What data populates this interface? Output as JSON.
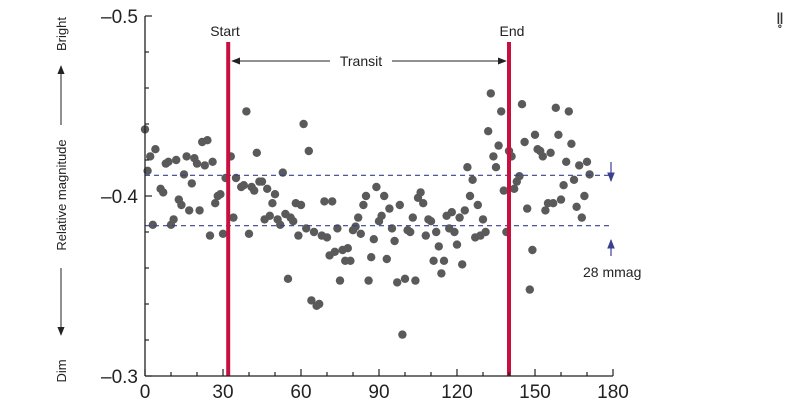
{
  "chart_data": {
    "type": "scatter",
    "xlim": [
      0,
      180
    ],
    "ylim": [
      -0.5,
      -0.3
    ],
    "y_axis_inverted": true,
    "x_ticks": [
      0,
      30,
      60,
      90,
      120,
      150,
      180
    ],
    "y_ticks": [
      -0.5,
      -0.4,
      -0.3
    ],
    "x_tick_labels": [
      "0",
      "30",
      "60",
      "90",
      "120",
      "150",
      "180"
    ],
    "y_tick_labels": [
      "–0.5",
      "–0.4",
      "–0.3"
    ],
    "ylabel": "Relative magnitude",
    "ylabel_top": "Bright",
    "ylabel_bottom": "Dim",
    "grid": false,
    "marker_color": "#5a5a5a",
    "points": [
      [
        0,
        -0.437
      ],
      [
        1,
        -0.414
      ],
      [
        2,
        -0.422
      ],
      [
        3,
        -0.384
      ],
      [
        4,
        -0.426
      ],
      [
        6,
        -0.404
      ],
      [
        7,
        -0.402
      ],
      [
        8,
        -0.418
      ],
      [
        9,
        -0.419
      ],
      [
        10,
        -0.384
      ],
      [
        11,
        -0.387
      ],
      [
        12,
        -0.42
      ],
      [
        13,
        -0.398
      ],
      [
        14,
        -0.395
      ],
      [
        15,
        -0.412
      ],
      [
        16,
        -0.422
      ],
      [
        17,
        -0.392
      ],
      [
        18,
        -0.407
      ],
      [
        19,
        -0.421
      ],
      [
        20,
        -0.418
      ],
      [
        21,
        -0.392
      ],
      [
        22,
        -0.43
      ],
      [
        23,
        -0.417
      ],
      [
        24,
        -0.431
      ],
      [
        25,
        -0.378
      ],
      [
        26,
        -0.419
      ],
      [
        27,
        -0.396
      ],
      [
        28,
        -0.4
      ],
      [
        29,
        -0.401
      ],
      [
        30,
        -0.379
      ],
      [
        31,
        -0.41
      ],
      [
        33,
        -0.422
      ],
      [
        34,
        -0.388
      ],
      [
        35,
        -0.41
      ],
      [
        37,
        -0.405
      ],
      [
        38,
        -0.406
      ],
      [
        39,
        -0.447
      ],
      [
        40,
        -0.379
      ],
      [
        41,
        -0.405
      ],
      [
        42,
        -0.403
      ],
      [
        43,
        -0.424
      ],
      [
        44,
        -0.408
      ],
      [
        45,
        -0.408
      ],
      [
        46,
        -0.387
      ],
      [
        47,
        -0.404
      ],
      [
        48,
        -0.389
      ],
      [
        49,
        -0.396
      ],
      [
        50,
        -0.401
      ],
      [
        51,
        -0.387
      ],
      [
        52,
        -0.384
      ],
      [
        53,
        -0.413
      ],
      [
        54,
        -0.39
      ],
      [
        55,
        -0.354
      ],
      [
        56,
        -0.388
      ],
      [
        57,
        -0.386
      ],
      [
        58,
        -0.396
      ],
      [
        59,
        -0.378
      ],
      [
        60,
        -0.395
      ],
      [
        61,
        -0.44
      ],
      [
        62,
        -0.382
      ],
      [
        63,
        -0.425
      ],
      [
        64,
        -0.342
      ],
      [
        65,
        -0.38
      ],
      [
        66,
        -0.339
      ],
      [
        67,
        -0.34
      ],
      [
        68,
        -0.378
      ],
      [
        69,
        -0.397
      ],
      [
        70,
        -0.377
      ],
      [
        71,
        -0.367
      ],
      [
        72,
        -0.397
      ],
      [
        73,
        -0.369
      ],
      [
        74,
        -0.382
      ],
      [
        75,
        -0.353
      ],
      [
        76,
        -0.37
      ],
      [
        77,
        -0.364
      ],
      [
        78,
        -0.371
      ],
      [
        79,
        -0.364
      ],
      [
        80,
        -0.381
      ],
      [
        81,
        -0.383
      ],
      [
        82,
        -0.388
      ],
      [
        83,
        -0.379
      ],
      [
        84,
        -0.395
      ],
      [
        85,
        -0.4
      ],
      [
        86,
        -0.353
      ],
      [
        87,
        -0.366
      ],
      [
        88,
        -0.376
      ],
      [
        89,
        -0.405
      ],
      [
        90,
        -0.386
      ],
      [
        91,
        -0.389
      ],
      [
        92,
        -0.4
      ],
      [
        93,
        -0.365
      ],
      [
        94,
        -0.393
      ],
      [
        95,
        -0.382
      ],
      [
        96,
        -0.375
      ],
      [
        97,
        -0.352
      ],
      [
        98,
        -0.395
      ],
      [
        99,
        -0.323
      ],
      [
        100,
        -0.354
      ],
      [
        101,
        -0.381
      ],
      [
        102,
        -0.38
      ],
      [
        103,
        -0.388
      ],
      [
        104,
        -0.353
      ],
      [
        105,
        -0.399
      ],
      [
        106,
        -0.402
      ],
      [
        107,
        -0.396
      ],
      [
        108,
        -0.378
      ],
      [
        109,
        -0.387
      ],
      [
        110,
        -0.386
      ],
      [
        111,
        -0.364
      ],
      [
        112,
        -0.38
      ],
      [
        113,
        -0.372
      ],
      [
        114,
        -0.357
      ],
      [
        115,
        -0.364
      ],
      [
        116,
        -0.389
      ],
      [
        117,
        -0.382
      ],
      [
        118,
        -0.391
      ],
      [
        119,
        -0.38
      ],
      [
        120,
        -0.373
      ],
      [
        121,
        -0.388
      ],
      [
        122,
        -0.362
      ],
      [
        123,
        -0.392
      ],
      [
        124,
        -0.416
      ],
      [
        125,
        -0.4
      ],
      [
        126,
        -0.409
      ],
      [
        127,
        -0.377
      ],
      [
        128,
        -0.395
      ],
      [
        129,
        -0.378
      ],
      [
        130,
        -0.387
      ],
      [
        131,
        -0.38
      ],
      [
        132,
        -0.436
      ],
      [
        133,
        -0.457
      ],
      [
        134,
        -0.422
      ],
      [
        135,
        -0.416
      ],
      [
        136,
        -0.428
      ],
      [
        137,
        -0.447
      ],
      [
        138,
        -0.403
      ],
      [
        139,
        -0.38
      ],
      [
        140,
        -0.425
      ],
      [
        141,
        -0.422
      ],
      [
        142,
        -0.404
      ],
      [
        143,
        -0.408
      ],
      [
        144,
        -0.411
      ],
      [
        145,
        -0.451
      ],
      [
        146,
        -0.43
      ],
      [
        147,
        -0.393
      ],
      [
        148,
        -0.348
      ],
      [
        149,
        -0.37
      ],
      [
        150,
        -0.434
      ],
      [
        151,
        -0.426
      ],
      [
        152,
        -0.425
      ],
      [
        153,
        -0.422
      ],
      [
        154,
        -0.392
      ],
      [
        155,
        -0.396
      ],
      [
        156,
        -0.424
      ],
      [
        157,
        -0.396
      ],
      [
        158,
        -0.449
      ],
      [
        159,
        -0.434
      ],
      [
        160,
        -0.398
      ],
      [
        161,
        -0.406
      ],
      [
        162,
        -0.419
      ],
      [
        163,
        -0.447
      ],
      [
        164,
        -0.429
      ],
      [
        165,
        -0.409
      ],
      [
        166,
        -0.394
      ],
      [
        167,
        -0.417
      ],
      [
        168,
        -0.388
      ],
      [
        169,
        -0.4
      ],
      [
        170,
        -0.419
      ],
      [
        171,
        -0.412
      ]
    ],
    "vertical_markers": [
      {
        "x": 32,
        "label": "Start",
        "color": "#c8103e"
      },
      {
        "x": 140,
        "label": "End",
        "color": "#c8103e"
      }
    ],
    "horizontal_reference_lines": [
      {
        "y": -0.4115,
        "color": "#3a3f8f",
        "style": "dashed"
      },
      {
        "y": -0.3835,
        "color": "#3a3f8f",
        "style": "dashed"
      }
    ],
    "annotations": {
      "transit_label": "Transit",
      "depth_label": "28 mmag"
    }
  },
  "corner_mark": "Ⅱ̥"
}
